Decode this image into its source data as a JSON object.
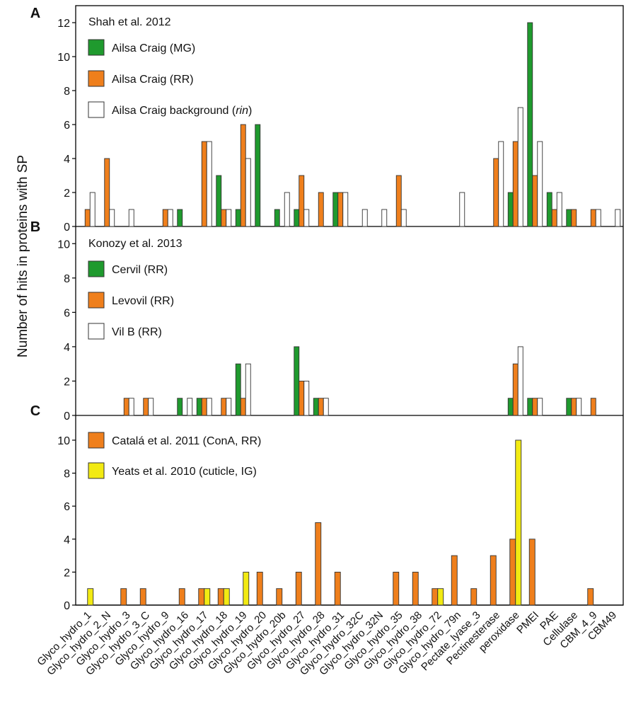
{
  "ylabel": "Number of hits in proteins with SP",
  "colors": {
    "green": "#1f9a2e",
    "orange": "#ef7f1c",
    "white": "#ffffff",
    "yellow": "#f2ea12",
    "outline": "#333333",
    "axis": "#000000"
  },
  "chart_data": {
    "type": "bar",
    "categories": [
      "Glyco_hydro_1",
      "Glyco_hydro_2_N",
      "Glyco_hydro_3",
      "Glyco_hydro_3_C",
      "Glyco_hydro_9",
      "Glyco_hydro_16",
      "Glyco_hydro_17",
      "Glyco_hydro_18",
      "Glyco_hydro_19",
      "Glyco_hydro_20",
      "Glyco_hydro_20b",
      "Glyco_hydro_27",
      "Glyco_hydro_28",
      "Glyco_hydro_31",
      "Glyco_hydro_32C",
      "Glyco_hydro_32N",
      "Glyco_hydro_35",
      "Glyco_hydro_38",
      "Glyco_hydro_72",
      "Glyco_hydro_79n",
      "Pectate_lyase_3",
      "Pectinesterase",
      "peroxidase",
      "PMEI",
      "PAE",
      "Cellulase",
      "CBM_4_9",
      "CBM49"
    ],
    "panels": [
      {
        "letter": "A",
        "title": "Shah et al. 2012",
        "ylim": [
          0,
          13
        ],
        "yticks": [
          0,
          2,
          4,
          6,
          8,
          10,
          12
        ],
        "series": [
          {
            "name": "Ailsa Craig (MG)",
            "color": "green",
            "values": [
              0,
              0,
              0,
              0,
              0,
              1,
              0,
              3,
              1,
              6,
              1,
              1,
              0,
              2,
              0,
              0,
              0,
              0,
              0,
              0,
              0,
              0,
              2,
              12,
              2,
              1,
              0,
              0
            ]
          },
          {
            "name": "Ailsa Craig (RR)",
            "color": "orange",
            "values": [
              1,
              4,
              0,
              0,
              1,
              0,
              5,
              1,
              6,
              0,
              0,
              3,
              2,
              2,
              0,
              0,
              3,
              0,
              0,
              0,
              0,
              4,
              5,
              3,
              1,
              1,
              1,
              0
            ]
          },
          {
            "name": "Ailsa Craig background (rin)",
            "name_main": "Ailsa Craig background (",
            "name_italic": "rin",
            "name_end": ")",
            "color": "white",
            "values": [
              2,
              1,
              1,
              0,
              1,
              0,
              5,
              1,
              4,
              0,
              2,
              1,
              0,
              2,
              1,
              1,
              1,
              0,
              0,
              2,
              0,
              5,
              7,
              5,
              2,
              0,
              1,
              1
            ]
          }
        ]
      },
      {
        "letter": "B",
        "title": "Konozy et al. 2013",
        "ylim": [
          0,
          11
        ],
        "yticks": [
          0,
          2,
          4,
          6,
          8,
          10
        ],
        "series": [
          {
            "name": "Cervil (RR)",
            "color": "green",
            "values": [
              0,
              0,
              0,
              0,
              0,
              1,
              1,
              0,
              3,
              0,
              0,
              4,
              1,
              0,
              0,
              0,
              0,
              0,
              0,
              0,
              0,
              0,
              1,
              1,
              0,
              1,
              0,
              0
            ]
          },
          {
            "name": "Levovil (RR)",
            "color": "orange",
            "values": [
              0,
              0,
              1,
              1,
              0,
              0,
              1,
              1,
              1,
              0,
              0,
              2,
              1,
              0,
              0,
              0,
              0,
              0,
              0,
              0,
              0,
              0,
              3,
              1,
              0,
              1,
              1,
              0
            ]
          },
          {
            "name": "Vil B (RR)",
            "color": "white",
            "values": [
              0,
              0,
              1,
              1,
              0,
              1,
              1,
              1,
              3,
              0,
              0,
              2,
              1,
              0,
              0,
              0,
              0,
              0,
              0,
              0,
              0,
              0,
              4,
              1,
              0,
              1,
              0,
              0
            ]
          }
        ]
      },
      {
        "letter": "C",
        "title": "",
        "ylim": [
          0,
          11.5
        ],
        "yticks": [
          0,
          2,
          4,
          6,
          8,
          10
        ],
        "series": [
          {
            "name": "Catalá et al. 2011 (ConA, RR)",
            "color": "orange",
            "values": [
              0,
              0,
              1,
              1,
              0,
              1,
              1,
              1,
              0,
              2,
              1,
              2,
              5,
              2,
              0,
              0,
              2,
              2,
              1,
              3,
              1,
              3,
              4,
              4,
              0,
              0,
              1,
              0
            ]
          },
          {
            "name": "Yeats et al. 2010 (cuticle, IG)",
            "color": "yellow",
            "values": [
              1,
              0,
              0,
              0,
              0,
              0,
              1,
              1,
              2,
              0,
              0,
              0,
              0,
              0,
              0,
              0,
              0,
              0,
              1,
              0,
              0,
              0,
              10,
              0,
              0,
              0,
              0,
              0
            ]
          }
        ]
      }
    ]
  }
}
